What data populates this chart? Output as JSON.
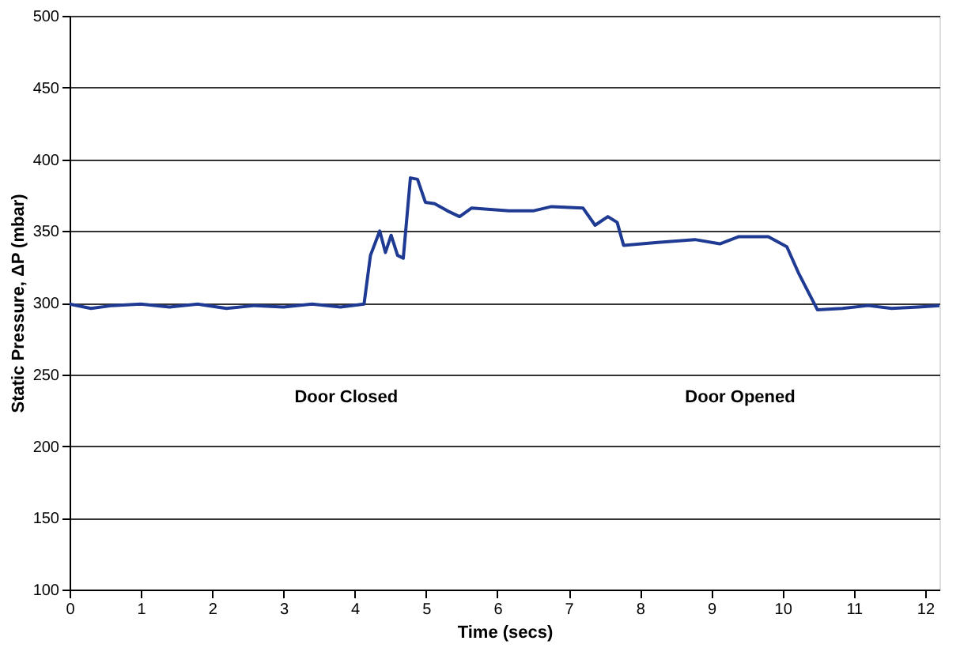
{
  "chart_data": {
    "type": "line",
    "xlabel": "Time (secs)",
    "ylabel": "Static Pressure, ΔP (mbar)",
    "x": [
      0,
      0.3,
      0.6,
      1.0,
      1.4,
      1.8,
      2.2,
      2.6,
      3.0,
      3.4,
      3.8,
      4.13,
      4.22,
      4.35,
      4.43,
      4.51,
      4.6,
      4.68,
      4.78,
      4.88,
      4.99,
      5.12,
      5.3,
      5.47,
      5.64,
      6.16,
      6.5,
      6.76,
      7.2,
      7.37,
      7.55,
      7.68,
      7.77,
      8.25,
      8.77,
      9.12,
      9.38,
      9.8,
      10.06,
      10.23,
      10.49,
      10.84,
      11.2,
      11.53,
      11.9,
      12.2
    ],
    "series": [
      {
        "color": "#1f3a93",
        "values": [
          299,
          296,
          298,
          299,
          297,
          299,
          296,
          298,
          297,
          299,
          297,
          299,
          333,
          350,
          335,
          347,
          333,
          331,
          387,
          386,
          370,
          369,
          364,
          360,
          366,
          364,
          364,
          367,
          366,
          354,
          360,
          356,
          340,
          342,
          344,
          341,
          346,
          346,
          339,
          320,
          295,
          296,
          298,
          296,
          297,
          298
        ]
      }
    ],
    "xlim": [
      0,
      12.2
    ],
    "xticks": [
      0,
      1,
      2,
      3,
      4,
      5,
      6,
      7,
      8,
      9,
      10,
      11,
      12
    ],
    "ylim": [
      100,
      500
    ],
    "yticks": [
      100,
      150,
      200,
      250,
      300,
      350,
      400,
      450,
      500
    ],
    "grid": "y",
    "marker": "none",
    "line_style": "solid",
    "annotations": [
      "Door Closed",
      "Door Opened"
    ]
  }
}
